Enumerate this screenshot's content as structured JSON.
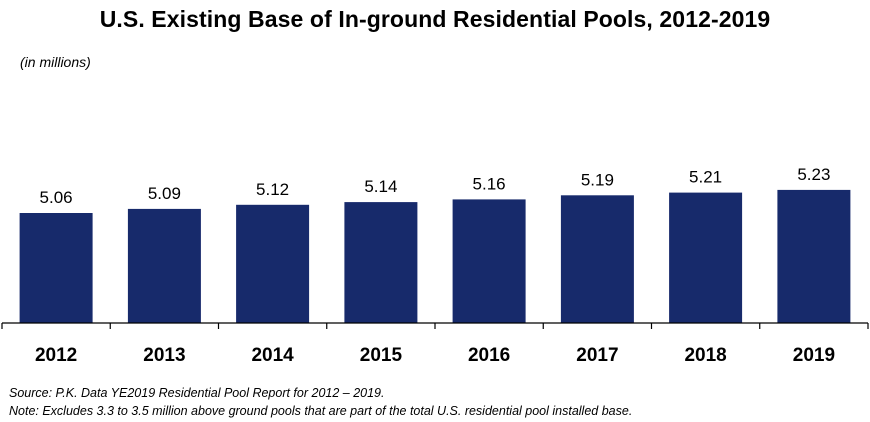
{
  "chart_data": {
    "type": "bar",
    "title": "U.S. Existing Base of In-ground Residential Pools, 2012-2019",
    "unit_label": "(in millions)",
    "categories": [
      "2012",
      "2013",
      "2014",
      "2015",
      "2016",
      "2017",
      "2018",
      "2019"
    ],
    "values": [
      5.06,
      5.09,
      5.12,
      5.14,
      5.16,
      5.19,
      5.21,
      5.23
    ],
    "value_labels": [
      "5.06",
      "5.09",
      "5.12",
      "5.14",
      "5.16",
      "5.19",
      "5.21",
      "5.23"
    ],
    "xlabel": "",
    "ylabel": "",
    "ylim": [
      4.25,
      5.45
    ],
    "bar_color": "#172a6b",
    "grid": false,
    "legend": "none"
  },
  "notes": {
    "source": "Source: P.K. Data YE2019 Residential Pool Report for 2012 – 2019.",
    "exclusion": "Note: Excludes 3.3 to 3.5 million above ground pools that are part of the total U.S. residential pool installed base."
  }
}
